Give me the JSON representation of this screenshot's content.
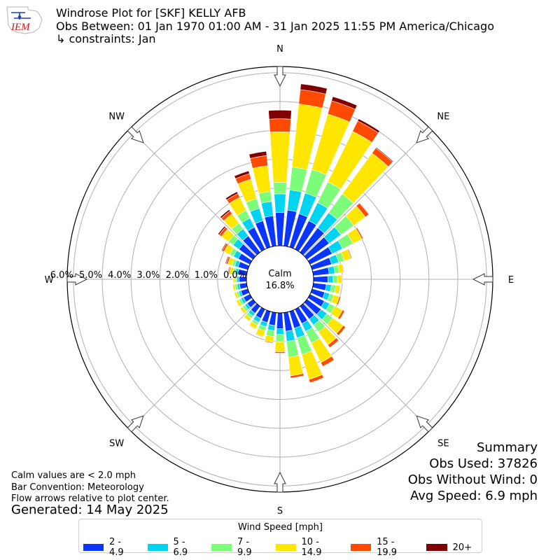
{
  "header": {
    "title_line1": "Windrose Plot for [SKF] KELLY AFB",
    "title_line2": "Obs Between: 01 Jan 1970 01:00 AM - 31 Jan 2025 11:55 PM America/Chicago",
    "title_line3": "↳ constraints: Jan",
    "logo_text": "IEM"
  },
  "footnotes": {
    "calm_note": "Calm values are < 2.0 mph",
    "bar_convention": "Bar Convention: Meteorology",
    "flow_note": "Flow arrows relative to plot center.",
    "generated": "Generated: 14 May 2025"
  },
  "summary": {
    "title": "Summary",
    "obs_used": "Obs Used: 37826",
    "obs_without_wind": "Obs Without Wind: 0",
    "avg_speed": "Avg Speed: 6.9 mph"
  },
  "legend": {
    "title": "Wind Speed [mph]",
    "items": [
      {
        "label": "2 - 4.9",
        "color": "#0a35fa"
      },
      {
        "label": "5 - 6.9",
        "color": "#00d4f0"
      },
      {
        "label": "7 - 9.9",
        "color": "#7dfc7a"
      },
      {
        "label": "10 - 14.9",
        "color": "#ffe600"
      },
      {
        "label": "15 - 19.9",
        "color": "#ff4a00"
      },
      {
        "label": "20+",
        "color": "#800000"
      }
    ]
  },
  "chart_data": {
    "type": "windrose",
    "calm_label": "Calm",
    "calm_percent": "16.8%",
    "radial_tick_labels": [
      "0.0%",
      "1.0%",
      "2.0%",
      "3.0%",
      "4.0%",
      "5.0%",
      "6.0%"
    ],
    "compass_labels": [
      "N",
      "NE",
      "E",
      "SE",
      "S",
      "SW",
      "W",
      "NW"
    ],
    "speed_bins": [
      "2 - 4.9",
      "5 - 6.9",
      "7 - 9.9",
      "10 - 14.9",
      "15 - 19.9",
      "20+"
    ],
    "bin_colors": [
      "#0a35fa",
      "#00d4f0",
      "#7dfc7a",
      "#ffe600",
      "#ff4a00",
      "#800000"
    ],
    "sector_width_deg": 10,
    "directions_deg": [
      0,
      10,
      20,
      30,
      40,
      50,
      60,
      70,
      80,
      90,
      100,
      110,
      120,
      130,
      140,
      150,
      160,
      170,
      180,
      190,
      200,
      210,
      220,
      230,
      240,
      250,
      260,
      270,
      280,
      290,
      300,
      310,
      320,
      330,
      340,
      350
    ],
    "percent_by_direction": [
      [
        1.15,
        0.65,
        0.4,
        1.75,
        0.45,
        0.3
      ],
      [
        1.25,
        0.7,
        0.8,
        2.2,
        0.5,
        0.2
      ],
      [
        1.2,
        0.75,
        0.85,
        2.0,
        0.48,
        0.15
      ],
      [
        1.1,
        0.7,
        0.8,
        1.95,
        0.4,
        0.08
      ],
      [
        1.05,
        0.65,
        0.8,
        1.75,
        0.22,
        0.03
      ],
      [
        0.95,
        0.5,
        0.55,
        0.5,
        0.15,
        0.02
      ],
      [
        0.85,
        0.4,
        0.4,
        0.35,
        0.05,
        0.0
      ],
      [
        0.7,
        0.25,
        0.2,
        0.25,
        0.03,
        0.0
      ],
      [
        0.55,
        0.2,
        0.15,
        0.15,
        0.02,
        0.0
      ],
      [
        0.5,
        0.18,
        0.15,
        0.15,
        0.02,
        0.0
      ],
      [
        0.45,
        0.18,
        0.15,
        0.15,
        0.02,
        0.0
      ],
      [
        0.45,
        0.18,
        0.15,
        0.2,
        0.05,
        0.0
      ],
      [
        0.55,
        0.2,
        0.2,
        0.3,
        0.08,
        0.0
      ],
      [
        0.6,
        0.25,
        0.25,
        0.45,
        0.1,
        0.0
      ],
      [
        0.55,
        0.25,
        0.3,
        0.55,
        0.12,
        0.0
      ],
      [
        0.55,
        0.3,
        0.45,
        0.75,
        0.15,
        0.0
      ],
      [
        0.6,
        0.35,
        0.6,
        0.9,
        0.12,
        0.0
      ],
      [
        0.65,
        0.35,
        0.55,
        0.65,
        0.08,
        0.0
      ],
      [
        0.55,
        0.2,
        0.25,
        0.35,
        0.05,
        0.0
      ],
      [
        0.45,
        0.18,
        0.2,
        0.2,
        0.03,
        0.0
      ],
      [
        0.4,
        0.15,
        0.15,
        0.2,
        0.02,
        0.0
      ],
      [
        0.35,
        0.15,
        0.1,
        0.15,
        0.02,
        0.0
      ],
      [
        0.3,
        0.12,
        0.1,
        0.12,
        0.01,
        0.0
      ],
      [
        0.25,
        0.1,
        0.1,
        0.1,
        0.01,
        0.0
      ],
      [
        0.25,
        0.1,
        0.08,
        0.1,
        0.01,
        0.0
      ],
      [
        0.25,
        0.08,
        0.08,
        0.08,
        0.01,
        0.0
      ],
      [
        0.25,
        0.08,
        0.08,
        0.08,
        0.01,
        0.0
      ],
      [
        0.25,
        0.08,
        0.06,
        0.06,
        0.02,
        0.0
      ],
      [
        0.3,
        0.1,
        0.08,
        0.12,
        0.04,
        0.02
      ],
      [
        0.35,
        0.12,
        0.1,
        0.15,
        0.06,
        0.03
      ],
      [
        0.45,
        0.18,
        0.15,
        0.22,
        0.07,
        0.03
      ],
      [
        0.6,
        0.25,
        0.2,
        0.3,
        0.1,
        0.05
      ],
      [
        0.7,
        0.3,
        0.25,
        0.4,
        0.12,
        0.06
      ],
      [
        0.85,
        0.35,
        0.3,
        0.5,
        0.15,
        0.07
      ],
      [
        0.95,
        0.45,
        0.35,
        0.7,
        0.2,
        0.1
      ],
      [
        1.05,
        0.5,
        0.35,
        0.9,
        0.35,
        0.15
      ]
    ],
    "grid": true
  }
}
